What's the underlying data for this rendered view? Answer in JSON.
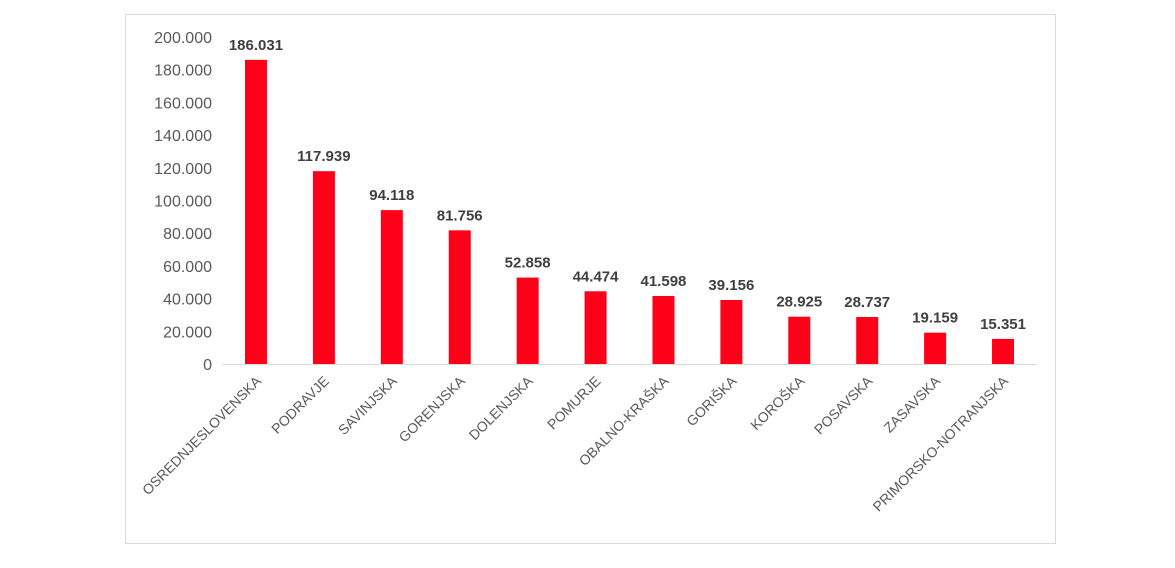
{
  "chart_data": {
    "type": "bar",
    "title": "",
    "xlabel": "",
    "ylabel": "",
    "ylim": [
      0,
      200000
    ],
    "yticks": [
      0,
      20000,
      40000,
      60000,
      80000,
      100000,
      120000,
      140000,
      160000,
      180000,
      200000
    ],
    "ytick_labels": [
      "0",
      "20.000",
      "40.000",
      "60.000",
      "80.000",
      "100.000",
      "120.000",
      "140.000",
      "160.000",
      "180.000",
      "200.000"
    ],
    "grid": false,
    "legend": "none",
    "bar_color": "#ff0019",
    "categories": [
      "OSREDNJESLOVENSKA",
      "PODRAVJE",
      "SAVINJSKA",
      "GORENJSKA",
      "DOLENJSKA",
      "POMURJE",
      "OBALNO-KRAŠKA",
      "GORIŠKA",
      "KOROŠKA",
      "POSAVSKA",
      "ZASAVSKA",
      "PRIMORSKO-NOTRANJSKA"
    ],
    "values": [
      186031,
      117939,
      94118,
      81756,
      52858,
      44474,
      41598,
      39156,
      28925,
      28737,
      19159,
      15351
    ],
    "data_labels": [
      "186.031",
      "117.939",
      "94.118",
      "81.756",
      "52.858",
      "44.474",
      "41.598",
      "39.156",
      "28.925",
      "28.737",
      "19.159",
      "15.351"
    ]
  }
}
